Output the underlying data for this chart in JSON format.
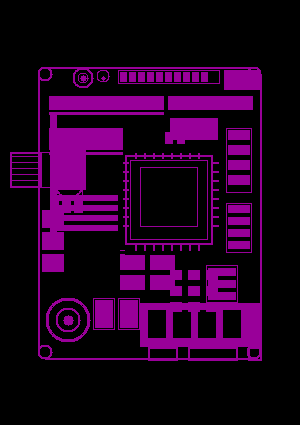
{
  "bg_color": "#000000",
  "pcb_color": "#990099",
  "figsize": [
    3.0,
    4.25
  ],
  "dpi": 100
}
